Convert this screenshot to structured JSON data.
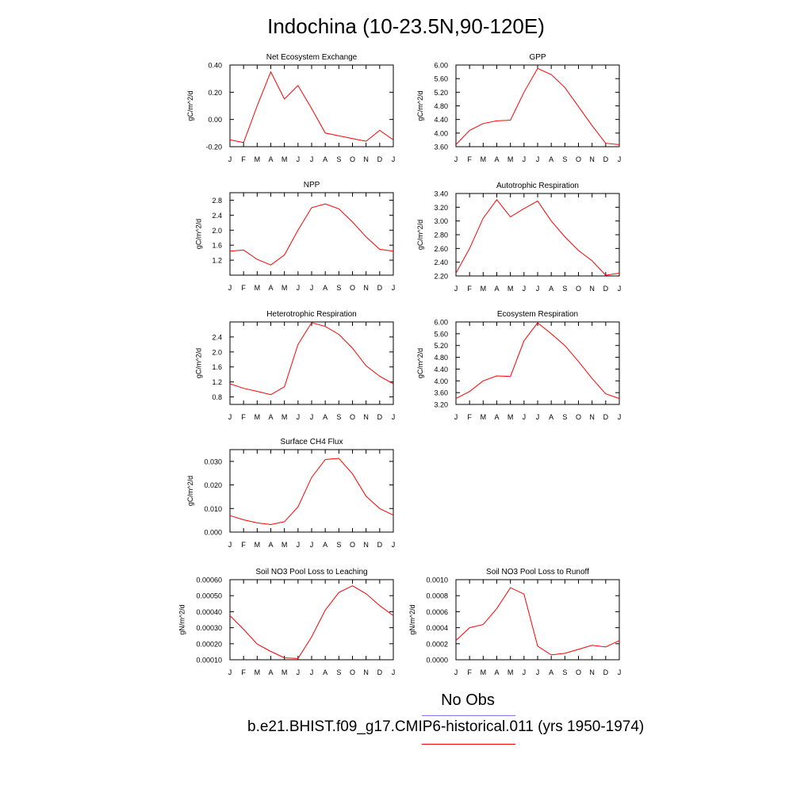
{
  "page": {
    "title": "Indochina (10-23.5N,90-120E)"
  },
  "legend": {
    "items": [
      {
        "label": "No Obs",
        "color": "#7b7bf0"
      },
      {
        "label": "b.e21.BHIST.f09_g17.CMIP6-historical.011 (yrs 1950-1974)",
        "color": "#ff0000"
      }
    ]
  },
  "chart_data": [
    {
      "type": "line",
      "title": "Net Ecosystem Exchange",
      "ylabel": "gC/m^2/d",
      "categories": [
        "J",
        "F",
        "M",
        "A",
        "M",
        "J",
        "J",
        "A",
        "S",
        "O",
        "N",
        "D",
        "J"
      ],
      "ylim": [
        -0.2,
        0.4
      ],
      "yticks": [
        "-0.20",
        "0.00",
        "0.20",
        "0.40"
      ],
      "series": [
        {
          "values": [
            -0.15,
            -0.17,
            0.1,
            0.35,
            0.15,
            0.25,
            0.08,
            -0.1,
            -0.12,
            -0.14,
            -0.16,
            -0.08,
            -0.15
          ],
          "color": "#ff0000"
        }
      ]
    },
    {
      "type": "line",
      "title": "GPP",
      "ylabel": "gC/m^2/d",
      "categories": [
        "J",
        "F",
        "M",
        "A",
        "M",
        "J",
        "J",
        "A",
        "S",
        "O",
        "N",
        "D",
        "J"
      ],
      "ylim": [
        3.6,
        6.0
      ],
      "yticks": [
        "3.60",
        "4.00",
        "4.40",
        "4.80",
        "5.20",
        "5.60",
        "6.00"
      ],
      "series": [
        {
          "values": [
            3.66,
            4.08,
            4.28,
            4.36,
            4.38,
            5.2,
            5.9,
            5.72,
            5.34,
            4.78,
            4.22,
            3.7,
            3.66
          ],
          "color": "#ff0000"
        }
      ]
    },
    {
      "type": "line",
      "title": "NPP",
      "ylabel": "gC/m^2/d",
      "categories": [
        "J",
        "F",
        "M",
        "A",
        "M",
        "J",
        "J",
        "A",
        "S",
        "O",
        "N",
        "D",
        "J"
      ],
      "ylim": [
        0.8,
        3.0
      ],
      "yticks": [
        "1.2",
        "1.6",
        "2.0",
        "2.4",
        "2.8"
      ],
      "series": [
        {
          "values": [
            1.44,
            1.47,
            1.22,
            1.07,
            1.34,
            2.0,
            2.6,
            2.7,
            2.57,
            2.22,
            1.82,
            1.49,
            1.44
          ],
          "color": "#ff0000"
        }
      ]
    },
    {
      "type": "line",
      "title": "Autotrophic Respiration",
      "ylabel": "gC/m^2/d",
      "categories": [
        "J",
        "F",
        "M",
        "A",
        "M",
        "J",
        "J",
        "A",
        "S",
        "O",
        "N",
        "D",
        "J"
      ],
      "ylim": [
        2.2,
        3.4
      ],
      "yticks": [
        "2.20",
        "2.40",
        "2.60",
        "2.80",
        "3.00",
        "3.20",
        "3.40"
      ],
      "series": [
        {
          "values": [
            2.24,
            2.6,
            3.04,
            3.31,
            3.06,
            3.18,
            3.29,
            3.0,
            2.77,
            2.57,
            2.42,
            2.21,
            2.24
          ],
          "color": "#ff0000"
        }
      ]
    },
    {
      "type": "line",
      "title": "Heterotrophic Respiration",
      "ylabel": "gC/m^2/d",
      "categories": [
        "J",
        "F",
        "M",
        "A",
        "M",
        "J",
        "J",
        "A",
        "S",
        "O",
        "N",
        "D",
        "J"
      ],
      "ylim": [
        0.6,
        2.8
      ],
      "yticks": [
        "0.8",
        "1.2",
        "1.6",
        "2.0",
        "2.4"
      ],
      "series": [
        {
          "values": [
            1.15,
            1.03,
            0.95,
            0.86,
            1.07,
            2.2,
            2.78,
            2.68,
            2.47,
            2.1,
            1.63,
            1.35,
            1.15
          ],
          "color": "#ff0000"
        }
      ]
    },
    {
      "type": "line",
      "title": "Ecosystem Respiration",
      "ylabel": "gC/m^2/d",
      "categories": [
        "J",
        "F",
        "M",
        "A",
        "M",
        "J",
        "J",
        "A",
        "S",
        "O",
        "N",
        "D",
        "J"
      ],
      "ylim": [
        3.2,
        6.0
      ],
      "yticks": [
        "3.20",
        "3.60",
        "4.00",
        "4.40",
        "4.80",
        "5.20",
        "5.60",
        "6.00"
      ],
      "series": [
        {
          "values": [
            3.4,
            3.64,
            4.0,
            4.17,
            4.15,
            5.36,
            5.97,
            5.6,
            5.2,
            4.66,
            4.08,
            3.56,
            3.4
          ],
          "color": "#ff0000"
        }
      ]
    },
    {
      "type": "line",
      "title": "Surface CH4 Flux",
      "ylabel": "gC/m^2/d",
      "categories": [
        "J",
        "F",
        "M",
        "A",
        "M",
        "J",
        "J",
        "A",
        "S",
        "O",
        "N",
        "D",
        "J"
      ],
      "ylim": [
        0.0,
        0.035
      ],
      "yticks": [
        "0.000",
        "0.010",
        "0.020",
        "0.030"
      ],
      "series": [
        {
          "values": [
            0.007,
            0.0052,
            0.0039,
            0.0032,
            0.0044,
            0.0107,
            0.0232,
            0.0308,
            0.0313,
            0.0247,
            0.0152,
            0.01,
            0.0072
          ],
          "color": "#ff0000"
        }
      ]
    },
    {
      "type": "line",
      "title": "Soil NO3 Pool Loss to Leaching",
      "ylabel": "gN/m^2/d",
      "categories": [
        "J",
        "F",
        "M",
        "A",
        "M",
        "J",
        "J",
        "A",
        "S",
        "O",
        "N",
        "D",
        "J"
      ],
      "ylim": [
        0.0001,
        0.0006
      ],
      "yticks": [
        "0.00010",
        "0.00020",
        "0.00030",
        "0.00040",
        "0.00050",
        "0.00060"
      ],
      "series": [
        {
          "values": [
            0.000375,
            0.00029,
            0.000198,
            0.000152,
            0.000112,
            0.000108,
            0.000243,
            0.00041,
            0.00052,
            0.000562,
            0.000512,
            0.000438,
            0.000375
          ],
          "color": "#ff0000"
        }
      ]
    },
    {
      "type": "line",
      "title": "Soil NO3 Pool Loss to Runoff",
      "ylabel": "gN/m^2/d",
      "categories": [
        "J",
        "F",
        "M",
        "A",
        "M",
        "J",
        "J",
        "A",
        "S",
        "O",
        "N",
        "D",
        "J"
      ],
      "ylim": [
        0.0,
        0.001
      ],
      "yticks": [
        "0.0000",
        "0.0002",
        "0.0004",
        "0.0006",
        "0.0008",
        "0.0010"
      ],
      "series": [
        {
          "values": [
            0.00024,
            0.0004,
            0.00044,
            0.00064,
            0.0009,
            0.00082,
            0.00017,
            6e-05,
            8e-05,
            0.00013,
            0.00018,
            0.00016,
            0.00024
          ],
          "color": "#ff0000"
        }
      ]
    }
  ]
}
